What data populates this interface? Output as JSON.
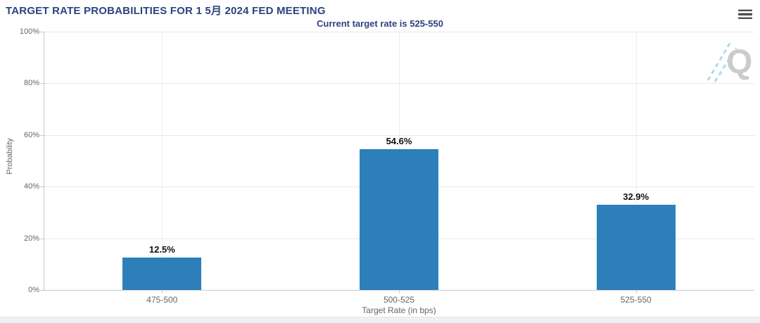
{
  "chart_data": {
    "type": "bar",
    "title": "TARGET RATE PROBABILITIES FOR 1 5月 2024 FED MEETING",
    "subtitle": "Current target rate is 525-550",
    "categories": [
      "475-500",
      "500-525",
      "525-550"
    ],
    "values": [
      12.5,
      54.6,
      32.9
    ],
    "value_labels": [
      "12.5%",
      "54.6%",
      "32.9%"
    ],
    "xlabel": "Target Rate (in bps)",
    "ylabel": "Probability",
    "ylim": [
      0,
      100
    ],
    "yticks": {
      "values": [
        0,
        20,
        40,
        60,
        80,
        100
      ],
      "labels": [
        "0%",
        "20%",
        "40%",
        "60%",
        "80%",
        "100%"
      ]
    },
    "grid": true,
    "legend": "none",
    "bar_color": "#2C7FB9"
  },
  "watermark": {
    "letter": "Q"
  },
  "colors": {
    "title_text": "#2C437E",
    "bar": "#2C7FB9",
    "grid": "#e7e7e7",
    "axis": "#c9c9c9",
    "tick_text": "#666666",
    "data_label": "#111111"
  }
}
